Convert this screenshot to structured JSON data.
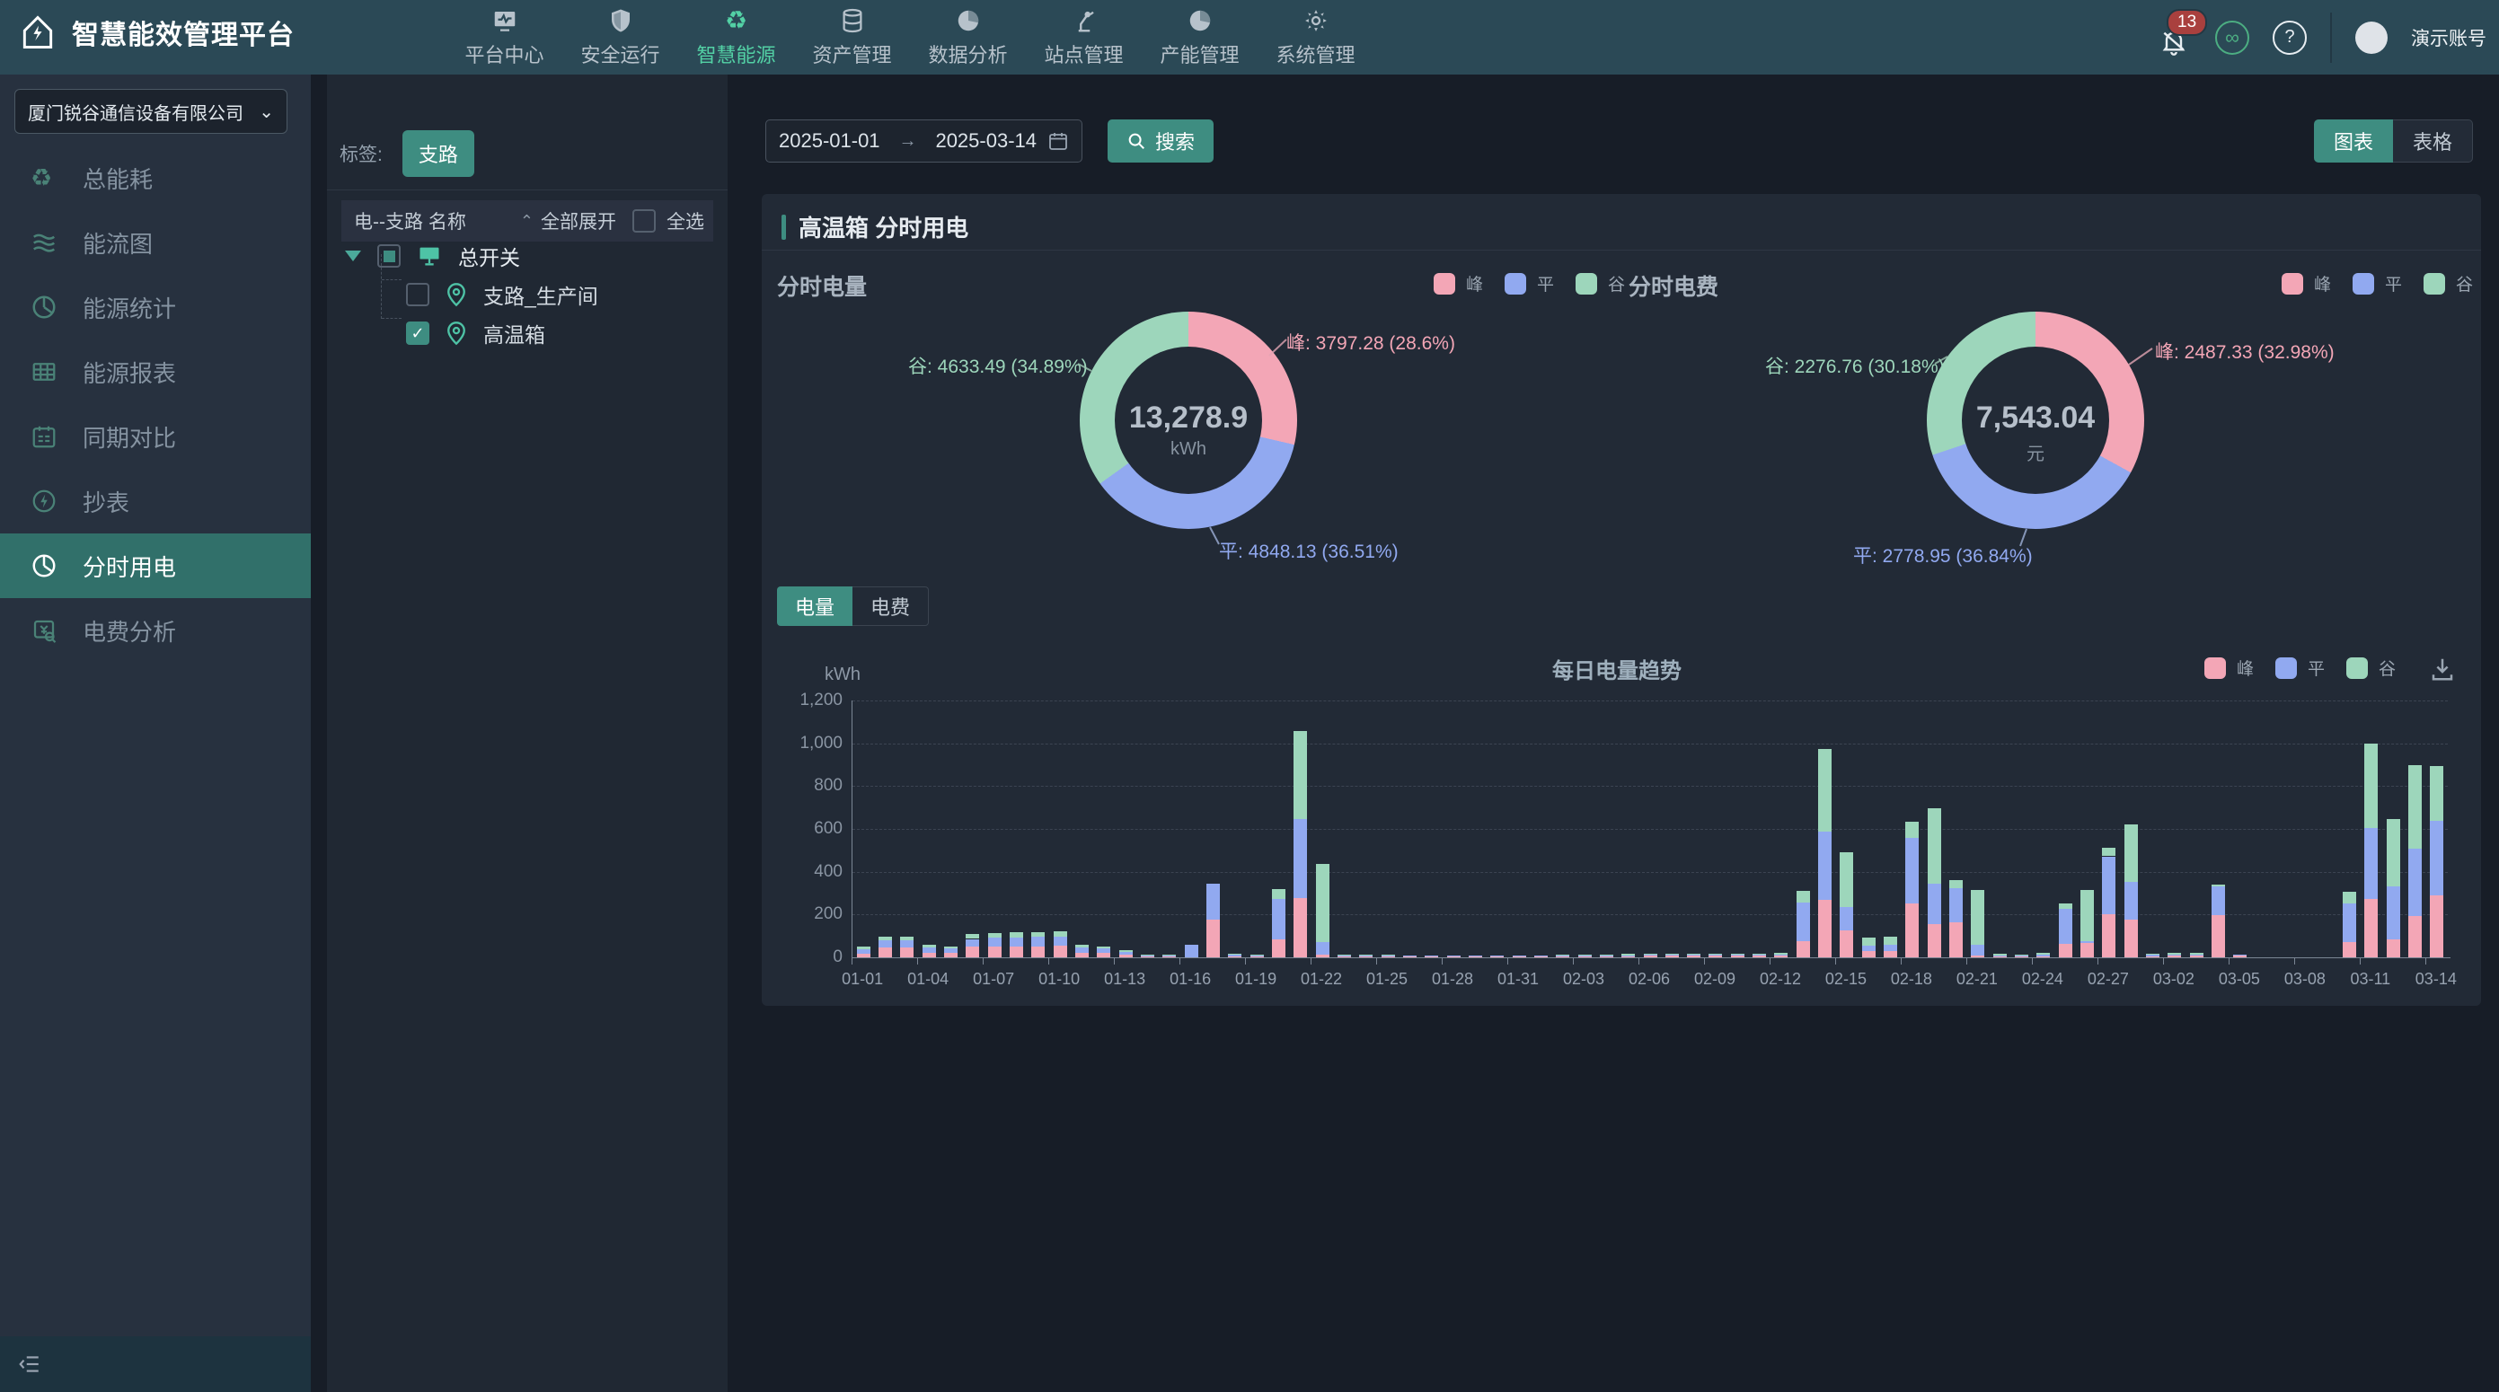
{
  "app": {
    "title": "智慧能效管理平台"
  },
  "topbar": {
    "nav": [
      {
        "label": "平台中心"
      },
      {
        "label": "安全运行"
      },
      {
        "label": "智慧能源"
      },
      {
        "label": "资产管理"
      },
      {
        "label": "数据分析"
      },
      {
        "label": "站点管理"
      },
      {
        "label": "产能管理"
      },
      {
        "label": "系统管理"
      }
    ],
    "badge": "13",
    "account": "演示账号"
  },
  "sidebar": {
    "company": "厦门锐谷通信设备有限公司",
    "items": [
      {
        "label": "总能耗"
      },
      {
        "label": "能流图"
      },
      {
        "label": "能源统计"
      },
      {
        "label": "能源报表"
      },
      {
        "label": "同期对比"
      },
      {
        "label": "抄表"
      },
      {
        "label": "分时用电"
      },
      {
        "label": "电费分析"
      }
    ]
  },
  "tree": {
    "tag_label": "标签:",
    "tag_value": "支路",
    "header_title": "电--支路 名称",
    "expand_all": "全部展开",
    "select_all": "全选",
    "root_label": "总开关",
    "children": [
      {
        "label": "支路_生产间",
        "checked": false
      },
      {
        "label": "高温箱",
        "checked": true
      }
    ]
  },
  "toolbar": {
    "date_start": "2025-01-01",
    "date_end": "2025-03-14",
    "search": "搜索",
    "view_chart": "图表",
    "view_table": "表格"
  },
  "panel": {
    "title": "高温箱 分时用电",
    "tab_energy": "电量",
    "tab_cost": "电费"
  },
  "legend": {
    "peak": "峰",
    "flat": "平",
    "valley": "谷"
  },
  "colors": {
    "peak": "#f3a6b6",
    "flat": "#91a9f0",
    "valley": "#9dd6bb",
    "accent": "#3e8d81"
  },
  "chart_data": [
    {
      "type": "pie",
      "title": "分时电量",
      "unit": "kWh",
      "center_value": "13,278.9",
      "slices": [
        {
          "key": "peak",
          "name": "峰",
          "value": 3797.28,
          "pct": 28.6
        },
        {
          "key": "flat",
          "name": "平",
          "value": 4848.13,
          "pct": 36.51
        },
        {
          "key": "valley",
          "name": "谷",
          "value": 4633.49,
          "pct": 34.89
        }
      ],
      "labels": {
        "peak": "峰: 3797.28 (28.6%)",
        "flat": "平: 4848.13 (36.51%)",
        "valley": "谷: 4633.49 (34.89%)"
      }
    },
    {
      "type": "pie",
      "title": "分时电费",
      "unit": "元",
      "center_value": "7,543.04",
      "slices": [
        {
          "key": "peak",
          "name": "峰",
          "value": 2487.33,
          "pct": 32.98
        },
        {
          "key": "flat",
          "name": "平",
          "value": 2778.95,
          "pct": 36.84
        },
        {
          "key": "valley",
          "name": "谷",
          "value": 2276.76,
          "pct": 30.18
        }
      ],
      "labels": {
        "peak": "峰: 2487.33 (32.98%)",
        "flat": "平: 2778.95 (36.84%)",
        "valley": "谷: 2276.76 (30.18%)"
      }
    },
    {
      "type": "bar",
      "stacked": true,
      "title": "每日电量趋势",
      "ylabel": "kWh",
      "ylim": [
        0,
        1200
      ],
      "ytick_step": 200,
      "yticks": [
        "0",
        "200",
        "400",
        "600",
        "800",
        "1,000",
        "1,200"
      ],
      "grid": "dashed",
      "legend_position": "top-right",
      "x": [
        "01-01",
        "01-02",
        "01-03",
        "01-04",
        "01-05",
        "01-06",
        "01-07",
        "01-08",
        "01-09",
        "01-10",
        "01-11",
        "01-12",
        "01-13",
        "01-14",
        "01-15",
        "01-16",
        "01-17",
        "01-18",
        "01-19",
        "01-20",
        "01-21",
        "01-22",
        "01-23",
        "01-24",
        "01-25",
        "01-26",
        "01-27",
        "01-28",
        "01-29",
        "01-30",
        "01-31",
        "02-01",
        "02-02",
        "02-03",
        "02-04",
        "02-05",
        "02-06",
        "02-07",
        "02-08",
        "02-09",
        "02-10",
        "02-11",
        "02-12",
        "02-13",
        "02-14",
        "02-15",
        "02-16",
        "02-17",
        "02-18",
        "02-19",
        "02-20",
        "02-21",
        "02-22",
        "02-23",
        "02-24",
        "02-25",
        "02-26",
        "02-27",
        "02-28",
        "03-01",
        "03-02",
        "03-03",
        "03-04",
        "03-05",
        "03-06",
        "03-07",
        "03-08",
        "03-09",
        "03-10",
        "03-11",
        "03-12",
        "03-13",
        "03-14"
      ],
      "x_label_interval": 3,
      "series": [
        {
          "key": "peak",
          "name": "峰",
          "values": [
            18,
            46,
            45,
            21,
            20,
            51,
            52,
            52,
            52,
            53,
            21,
            19,
            12,
            3,
            3,
            0,
            177,
            5,
            4,
            83,
            276,
            13,
            4,
            3,
            2,
            1,
            1,
            1,
            1,
            1,
            1,
            1,
            1,
            2,
            5,
            6,
            7,
            7,
            7,
            8,
            8,
            9,
            10,
            77,
            267,
            127,
            28,
            30,
            253,
            155,
            165,
            10,
            5,
            4,
            6,
            63,
            66,
            200,
            176,
            5,
            8,
            8,
            197,
            8,
            0,
            0,
            0,
            0,
            73,
            273,
            85,
            194,
            289
          ]
        },
        {
          "key": "flat",
          "name": "平",
          "values": [
            21,
            32,
            33,
            25,
            20,
            35,
            40,
            42,
            43,
            44,
            26,
            21,
            13,
            3,
            3,
            58,
            169,
            7,
            5,
            189,
            370,
            59,
            5,
            3,
            2,
            1,
            1,
            1,
            1,
            1,
            1,
            1,
            1,
            1,
            2,
            2,
            2,
            2,
            3,
            3,
            3,
            3,
            4,
            181,
            321,
            110,
            28,
            30,
            305,
            190,
            159,
            50,
            5,
            4,
            8,
            165,
            11,
            272,
            176,
            6,
            6,
            6,
            134,
            2,
            0,
            0,
            0,
            0,
            180,
            330,
            246,
            313,
            348
          ]
        },
        {
          "key": "valley",
          "name": "谷",
          "values": [
            11,
            18,
            19,
            11,
            11,
            21,
            22,
            23,
            23,
            24,
            11,
            11,
            7,
            1,
            1,
            0,
            0,
            3,
            3,
            46,
            411,
            363,
            3,
            2,
            2,
            0,
            0,
            0,
            0,
            0,
            0,
            0,
            1,
            1,
            4,
            5,
            5,
            5,
            5,
            5,
            5,
            5,
            5,
            52,
            387,
            253,
            35,
            35,
            75,
            352,
            35,
            253,
            5,
            4,
            6,
            25,
            239,
            38,
            270,
            4,
            6,
            6,
            7,
            0,
            0,
            0,
            0,
            0,
            54,
            394,
            314,
            391,
            258
          ]
        }
      ]
    }
  ]
}
